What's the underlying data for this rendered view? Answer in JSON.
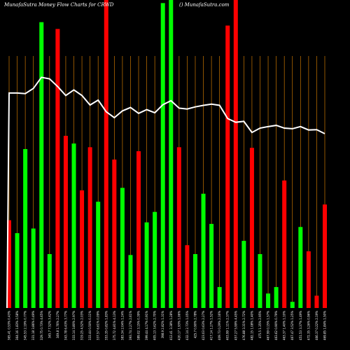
{
  "chart_data": {
    "type": "bar",
    "title_left": "MunafaSutra  Money Flow  Charts for CRWD",
    "title_right": "() MunafaSutra.com",
    "colors": {
      "up": "#00ff00",
      "down": "#ff0000",
      "line": "#ffffff",
      "grid": "#cc7700",
      "background": "#000000"
    },
    "ylim": [
      0,
      100
    ],
    "bars": [
      {
        "label": "365.41 0.53% 0.43%",
        "value": 28.5,
        "dir": "down"
      },
      {
        "label": "364.16 1.83% 3.58%",
        "value": 24.3,
        "dir": "up"
      },
      {
        "label": "345.53 2.19% 0.77%",
        "value": 51.6,
        "dir": "up"
      },
      {
        "label": "331.18 3.86% 0.49%",
        "value": 25.8,
        "dir": "up"
      },
      {
        "label": "329.75 0.73% 4.65%",
        "value": 92.8,
        "dir": "up"
      },
      {
        "label": "345.7 7.52% 3.42%",
        "value": 17.5,
        "dir": "up"
      },
      {
        "label": "349.8 1.76% 2.27%",
        "value": 90.6,
        "dir": "down"
      },
      {
        "label": "343.78 6.43% 3.77%",
        "value": 55.9,
        "dir": "down"
      },
      {
        "label": "333.14 3.80% 2.97%",
        "value": 53.4,
        "dir": "up"
      },
      {
        "label": "319.25 4.52% 2.03%",
        "value": 38.2,
        "dir": "down"
      },
      {
        "label": "333.44 0.50% 0.11%",
        "value": 52.2,
        "dir": "down"
      },
      {
        "label": "337.57 6.61% 0.09%",
        "value": 34.5,
        "dir": "up"
      },
      {
        "label": "353.35 0.82% 1.83%",
        "value": 100,
        "dir": "down"
      },
      {
        "label": "375.72 4.81% 4.13%",
        "value": 48.2,
        "dir": "down"
      },
      {
        "label": "383.34 2.04% 1.24%",
        "value": 39.0,
        "dir": "up"
      },
      {
        "label": "393.74 2.27% 2.61%",
        "value": 17.2,
        "dir": "up"
      },
      {
        "label": "389.02 3.15% 0.39%",
        "value": 50.9,
        "dir": "down"
      },
      {
        "label": "399.44 4.17% 0.91%",
        "value": 27.8,
        "dir": "up"
      },
      {
        "label": "405.13 3.62% 2.70%",
        "value": 31.2,
        "dir": "up"
      },
      {
        "label": "398.9 2.82% 1.31%",
        "value": 99.0,
        "dir": "up"
      },
      {
        "label": "412.41 3.38% 1.28%",
        "value": 100,
        "dir": "up"
      },
      {
        "label": "420.17 1.93% 1.06%",
        "value": 52.2,
        "dir": "down"
      },
      {
        "label": "432.14 2.73% 1.05%",
        "value": 20.4,
        "dir": "down"
      },
      {
        "label": "425.7 0.90% 2.78%",
        "value": 17.5,
        "dir": "up"
      },
      {
        "label": "423.03 0.63% 2.27%",
        "value": 37.1,
        "dir": "up"
      },
      {
        "label": "417.14 1.27% 1.52%",
        "value": 27.3,
        "dir": "up"
      },
      {
        "label": "409.73 0.29% 2.16%",
        "value": 6.8,
        "dir": "up"
      },
      {
        "label": "403.99 1.11% 2.37%",
        "value": 91.7,
        "dir": "down"
      },
      {
        "label": "457.27 5.99% 4.45%",
        "value": 100,
        "dir": "down"
      },
      {
        "label": "476.88 3.31% 2.72%",
        "value": 21.8,
        "dir": "up"
      },
      {
        "label": "482.15 1.08% 1.40%",
        "value": 52.0,
        "dir": "down"
      },
      {
        "label": "475.5 1.35% 2.95%",
        "value": 17.5,
        "dir": "up"
      },
      {
        "label": "467.99 0.15% 1.57%",
        "value": 4.7,
        "dir": "up"
      },
      {
        "label": "463.62 0.90% 0.79%",
        "value": 6.8,
        "dir": "up"
      },
      {
        "label": "463.37 1.40% 1.10%",
        "value": 41.4,
        "dir": "down"
      },
      {
        "label": "467.47 3.52% 1.25%",
        "value": 2.0,
        "dir": "up"
      },
      {
        "label": "451.53 3.37% 1.49%",
        "value": 26.3,
        "dir": "up"
      },
      {
        "label": "472.35 3.26% 0.96%",
        "value": 18.4,
        "dir": "down"
      },
      {
        "label": "466.37 0.22% 2.19%",
        "value": 4.0,
        "dir": "down"
      },
      {
        "label": "469.85 1.84% 1.50%",
        "value": 33.6,
        "dir": "down"
      }
    ],
    "line_values": [
      69.8,
      69.8,
      69.6,
      71.3,
      74.9,
      74.4,
      71.9,
      69.0,
      70.8,
      69.0,
      65.9,
      67.5,
      63.7,
      61.8,
      64.0,
      65.1,
      63.2,
      64.4,
      63.4,
      66.0,
      67.3,
      64.9,
      64.6,
      65.3,
      65.8,
      66.2,
      65.8,
      61.5,
      60.3,
      60.6,
      57.0,
      58.4,
      58.9,
      59.3,
      58.4,
      58.2,
      58.9,
      57.8,
      57.9,
      56.6
    ]
  }
}
